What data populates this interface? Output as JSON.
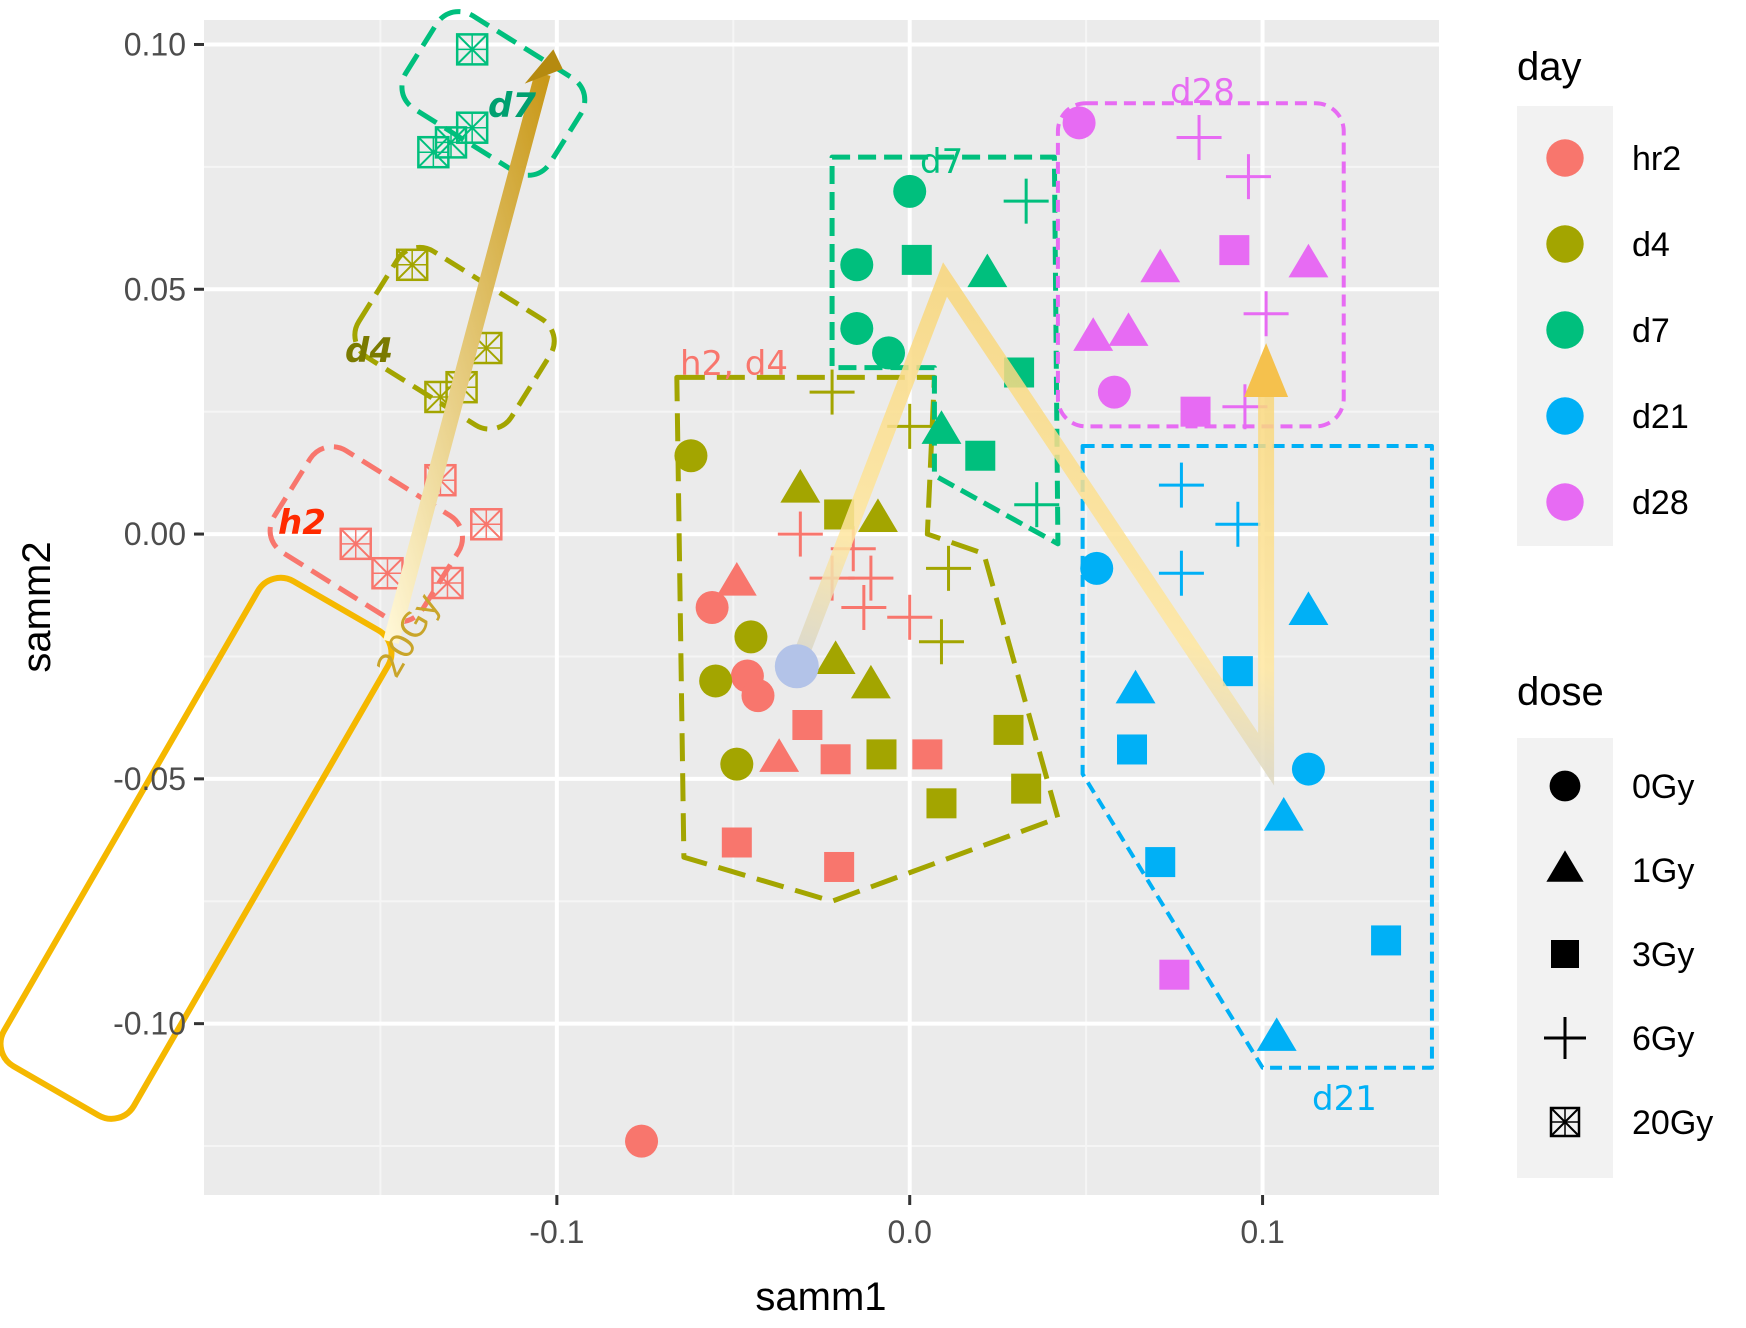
{
  "chart_data": {
    "type": "scatter",
    "title": "",
    "xlabel": "samm1",
    "ylabel": "samm2",
    "xlim": [
      -0.2,
      0.15
    ],
    "ylim": [
      -0.135,
      0.105
    ],
    "x_ticks": [
      -0.1,
      0.0,
      0.1
    ],
    "x_tick_labels": [
      "-0.1",
      "0.0",
      "0.1"
    ],
    "y_ticks": [
      -0.1,
      -0.05,
      0.0,
      0.05,
      0.1
    ],
    "y_tick_labels": [
      "-0.10",
      "-0.05",
      "0.00",
      "0.05",
      "0.10"
    ],
    "grid": true,
    "legend_position": "right",
    "colors": {
      "hr2": "#F8766D",
      "d4": "#A3A500",
      "d7": "#00BF7D",
      "d21": "#00B0F6",
      "d28": "#E76BF3"
    },
    "legend_day": {
      "title": "day",
      "entries": [
        "hr2",
        "d4",
        "d7",
        "d21",
        "d28"
      ]
    },
    "legend_dose": {
      "title": "dose",
      "entries": [
        {
          "label": "0Gy",
          "shape": "circle"
        },
        {
          "label": "1Gy",
          "shape": "triangle"
        },
        {
          "label": "3Gy",
          "shape": "square"
        },
        {
          "label": "6Gy",
          "shape": "plus"
        },
        {
          "label": "20Gy",
          "shape": "boxx"
        }
      ]
    },
    "points": [
      {
        "x": -0.076,
        "y": -0.124,
        "day": "hr2",
        "dose": "0Gy"
      },
      {
        "x": -0.056,
        "y": -0.015,
        "day": "hr2",
        "dose": "0Gy"
      },
      {
        "x": -0.046,
        "y": -0.029,
        "day": "hr2",
        "dose": "0Gy"
      },
      {
        "x": -0.043,
        "y": -0.033,
        "day": "hr2",
        "dose": "0Gy"
      },
      {
        "x": -0.049,
        "y": -0.01,
        "day": "hr2",
        "dose": "1Gy"
      },
      {
        "x": -0.037,
        "y": -0.046,
        "day": "hr2",
        "dose": "1Gy"
      },
      {
        "x": -0.029,
        "y": -0.039,
        "day": "hr2",
        "dose": "3Gy"
      },
      {
        "x": -0.021,
        "y": -0.046,
        "day": "hr2",
        "dose": "3Gy"
      },
      {
        "x": 0.005,
        "y": -0.045,
        "day": "hr2",
        "dose": "3Gy"
      },
      {
        "x": -0.049,
        "y": -0.063,
        "day": "hr2",
        "dose": "3Gy"
      },
      {
        "x": -0.02,
        "y": -0.068,
        "day": "hr2",
        "dose": "3Gy"
      },
      {
        "x": -0.031,
        "y": 0.0,
        "day": "hr2",
        "dose": "6Gy"
      },
      {
        "x": -0.022,
        "y": -0.009,
        "day": "hr2",
        "dose": "6Gy"
      },
      {
        "x": -0.011,
        "y": -0.009,
        "day": "hr2",
        "dose": "6Gy"
      },
      {
        "x": -0.013,
        "y": -0.015,
        "day": "hr2",
        "dose": "6Gy"
      },
      {
        "x": 0.0,
        "y": -0.017,
        "day": "hr2",
        "dose": "6Gy"
      },
      {
        "x": -0.016,
        "y": -0.003,
        "day": "hr2",
        "dose": "6Gy"
      },
      {
        "x": -0.062,
        "y": 0.016,
        "day": "d4",
        "dose": "0Gy"
      },
      {
        "x": -0.045,
        "y": -0.021,
        "day": "d4",
        "dose": "0Gy"
      },
      {
        "x": -0.055,
        "y": -0.03,
        "day": "d4",
        "dose": "0Gy"
      },
      {
        "x": -0.049,
        "y": -0.047,
        "day": "d4",
        "dose": "0Gy"
      },
      {
        "x": -0.031,
        "y": 0.009,
        "day": "d4",
        "dose": "1Gy"
      },
      {
        "x": -0.009,
        "y": 0.003,
        "day": "d4",
        "dose": "1Gy"
      },
      {
        "x": -0.021,
        "y": -0.026,
        "day": "d4",
        "dose": "1Gy"
      },
      {
        "x": -0.011,
        "y": -0.031,
        "day": "d4",
        "dose": "1Gy"
      },
      {
        "x": -0.02,
        "y": 0.004,
        "day": "d4",
        "dose": "3Gy"
      },
      {
        "x": -0.008,
        "y": -0.045,
        "day": "d4",
        "dose": "3Gy"
      },
      {
        "x": 0.009,
        "y": -0.055,
        "day": "d4",
        "dose": "3Gy"
      },
      {
        "x": 0.028,
        "y": -0.04,
        "day": "d4",
        "dose": "3Gy"
      },
      {
        "x": 0.033,
        "y": -0.052,
        "day": "d4",
        "dose": "3Gy"
      },
      {
        "x": -0.022,
        "y": 0.029,
        "day": "d4",
        "dose": "6Gy"
      },
      {
        "x": 0.0,
        "y": 0.022,
        "day": "d4",
        "dose": "6Gy"
      },
      {
        "x": 0.011,
        "y": -0.007,
        "day": "d4",
        "dose": "6Gy"
      },
      {
        "x": 0.009,
        "y": -0.022,
        "day": "d4",
        "dose": "6Gy"
      },
      {
        "x": 0.0,
        "y": 0.07,
        "day": "d7",
        "dose": "0Gy"
      },
      {
        "x": -0.015,
        "y": 0.055,
        "day": "d7",
        "dose": "0Gy"
      },
      {
        "x": -0.015,
        "y": 0.042,
        "day": "d7",
        "dose": "0Gy"
      },
      {
        "x": -0.006,
        "y": 0.037,
        "day": "d7",
        "dose": "0Gy"
      },
      {
        "x": 0.022,
        "y": 0.053,
        "day": "d7",
        "dose": "1Gy"
      },
      {
        "x": 0.009,
        "y": 0.021,
        "day": "d7",
        "dose": "1Gy"
      },
      {
        "x": 0.002,
        "y": 0.056,
        "day": "d7",
        "dose": "3Gy"
      },
      {
        "x": 0.031,
        "y": 0.033,
        "day": "d7",
        "dose": "3Gy"
      },
      {
        "x": 0.02,
        "y": 0.016,
        "day": "d7",
        "dose": "3Gy"
      },
      {
        "x": 0.033,
        "y": 0.068,
        "day": "d7",
        "dose": "6Gy"
      },
      {
        "x": 0.036,
        "y": 0.006,
        "day": "d7",
        "dose": "6Gy"
      },
      {
        "x": 0.053,
        "y": -0.007,
        "day": "d21",
        "dose": "0Gy"
      },
      {
        "x": 0.113,
        "y": -0.048,
        "day": "d21",
        "dose": "0Gy"
      },
      {
        "x": 0.064,
        "y": -0.032,
        "day": "d21",
        "dose": "1Gy"
      },
      {
        "x": 0.113,
        "y": -0.016,
        "day": "d21",
        "dose": "1Gy"
      },
      {
        "x": 0.106,
        "y": -0.058,
        "day": "d21",
        "dose": "1Gy"
      },
      {
        "x": 0.104,
        "y": -0.103,
        "day": "d21",
        "dose": "1Gy"
      },
      {
        "x": 0.063,
        "y": -0.044,
        "day": "d21",
        "dose": "3Gy"
      },
      {
        "x": 0.093,
        "y": -0.028,
        "day": "d21",
        "dose": "3Gy"
      },
      {
        "x": 0.071,
        "y": -0.067,
        "day": "d21",
        "dose": "3Gy"
      },
      {
        "x": 0.135,
        "y": -0.083,
        "day": "d21",
        "dose": "3Gy"
      },
      {
        "x": 0.077,
        "y": 0.01,
        "day": "d21",
        "dose": "6Gy"
      },
      {
        "x": 0.093,
        "y": 0.002,
        "day": "d21",
        "dose": "6Gy"
      },
      {
        "x": 0.077,
        "y": -0.008,
        "day": "d21",
        "dose": "6Gy"
      },
      {
        "x": 0.048,
        "y": 0.084,
        "day": "d28",
        "dose": "0Gy"
      },
      {
        "x": 0.058,
        "y": 0.029,
        "day": "d28",
        "dose": "0Gy"
      },
      {
        "x": 0.052,
        "y": 0.04,
        "day": "d28",
        "dose": "1Gy"
      },
      {
        "x": 0.062,
        "y": 0.041,
        "day": "d28",
        "dose": "1Gy"
      },
      {
        "x": 0.071,
        "y": 0.054,
        "day": "d28",
        "dose": "1Gy"
      },
      {
        "x": 0.113,
        "y": 0.055,
        "day": "d28",
        "dose": "1Gy"
      },
      {
        "x": 0.092,
        "y": 0.058,
        "day": "d28",
        "dose": "3Gy"
      },
      {
        "x": 0.081,
        "y": 0.025,
        "day": "d28",
        "dose": "3Gy"
      },
      {
        "x": 0.075,
        "y": -0.09,
        "day": "d28",
        "dose": "3Gy"
      },
      {
        "x": 0.082,
        "y": 0.081,
        "day": "d28",
        "dose": "6Gy"
      },
      {
        "x": 0.096,
        "y": 0.073,
        "day": "d28",
        "dose": "6Gy"
      },
      {
        "x": 0.101,
        "y": 0.045,
        "day": "d28",
        "dose": "6Gy"
      },
      {
        "x": 0.095,
        "y": 0.026,
        "day": "d28",
        "dose": "6Gy"
      },
      {
        "x": -0.157,
        "y": -0.002,
        "day": "hr2",
        "dose": "20Gy"
      },
      {
        "x": -0.148,
        "y": -0.008,
        "day": "hr2",
        "dose": "20Gy"
      },
      {
        "x": -0.133,
        "y": 0.011,
        "day": "hr2",
        "dose": "20Gy"
      },
      {
        "x": -0.12,
        "y": 0.002,
        "day": "hr2",
        "dose": "20Gy"
      },
      {
        "x": -0.131,
        "y": -0.01,
        "day": "hr2",
        "dose": "20Gy"
      },
      {
        "x": -0.141,
        "y": 0.055,
        "day": "d4",
        "dose": "20Gy"
      },
      {
        "x": -0.133,
        "y": 0.028,
        "day": "d4",
        "dose": "20Gy"
      },
      {
        "x": -0.127,
        "y": 0.03,
        "day": "d4",
        "dose": "20Gy"
      },
      {
        "x": -0.12,
        "y": 0.038,
        "day": "d4",
        "dose": "20Gy"
      },
      {
        "x": -0.124,
        "y": 0.099,
        "day": "d7",
        "dose": "20Gy"
      },
      {
        "x": -0.124,
        "y": 0.083,
        "day": "d7",
        "dose": "20Gy"
      },
      {
        "x": -0.13,
        "y": 0.08,
        "day": "d7",
        "dose": "20Gy"
      },
      {
        "x": -0.135,
        "y": 0.078,
        "day": "d7",
        "dose": "20Gy"
      }
    ],
    "annotations": {
      "group_h2_d4": "h2, d4",
      "group_d7": "d7",
      "group_d28": "d28",
      "group_d21": "d21",
      "inset_h2": "h2",
      "inset_d4": "d4",
      "inset_d7": "d7",
      "inset_dose": "20Gy"
    }
  }
}
